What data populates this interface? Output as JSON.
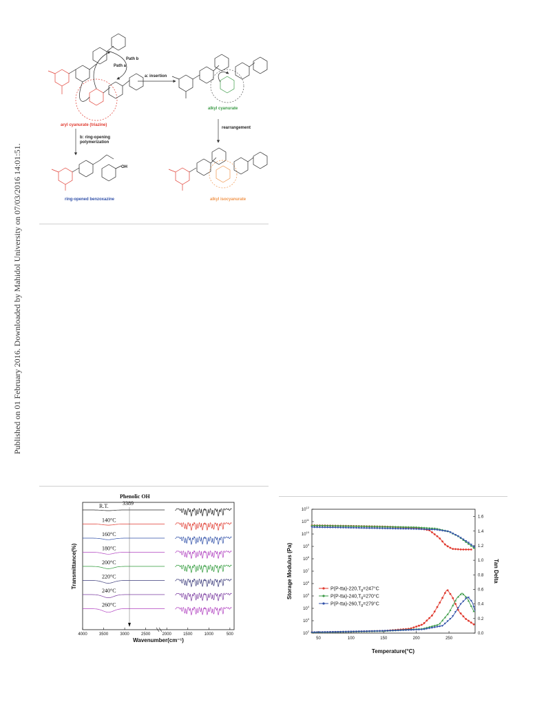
{
  "side_note": "Published on 01 February 2016. Downloaded by Mahidol University on 07/03/2016 14:01:51.",
  "scheme": {
    "path_a": "Path a",
    "path_b": "Path b",
    "arrow_insertion": "a: insertion",
    "arrow_rearrangement": "rearrangement",
    "arrow_rop_line1": "b: ring-opening",
    "arrow_rop_line2": "polymerization",
    "aryl_cyanurate": "aryl cyanurate (triazine)",
    "alkyl_cyanurate": "alkyl  cyanurate",
    "ring_opened": "ring-opened benzoxazine",
    "alkyl_isocyanurate": "alkyl isocyanurate"
  },
  "colors": {
    "red": "#e03a2f",
    "green": "#3a9a45",
    "blue": "#2f4fa8",
    "orange": "#f0944a",
    "black": "#222222",
    "purple": "#b040c0",
    "ftir_green": "#2f9a3a",
    "ftir_navy": "#3a3a7a",
    "ftir_violet": "#7a3aa0"
  },
  "chart_data": [
    {
      "type": "line",
      "title": "",
      "xlabel": "Wavenumber(cm⁻¹)",
      "ylabel": "Transmittance(%)",
      "xlim": [
        4000,
        400
      ],
      "x_ticks": [
        "4000",
        "3500",
        "3000",
        "2500",
        "2000",
        "1500",
        "1000",
        "500"
      ],
      "annotation_title": "Phenolic OH",
      "annotation_value": "3389",
      "series_labels": [
        "R.T.",
        "140°C",
        "160°C",
        "180°C",
        "200°C",
        "220°C",
        "240°C",
        "260°C"
      ],
      "series_colors": [
        "#222222",
        "#e03a2f",
        "#2f4fa8",
        "#b040c0",
        "#2f9a3a",
        "#3a3a7a",
        "#7a3aa0",
        "#b040c0"
      ]
    },
    {
      "type": "line",
      "title": "",
      "xlabel": "Temperature(°C)",
      "ylabel": "Storage Modulus (Pa)",
      "y2label": "Tan Delta",
      "xlim": [
        40,
        290
      ],
      "x_ticks": [
        50,
        100,
        150,
        200,
        250
      ],
      "y_log_exponents": [
        2,
        3,
        4,
        5,
        6,
        7,
        8,
        9,
        10,
        11,
        12
      ],
      "y2_ticks": [
        "0.0",
        "0.2",
        "0.4",
        "0.6",
        "0.8",
        "1.0",
        "1.2",
        "1.4",
        "1.6"
      ],
      "legend_position": "lower-left",
      "series": [
        {
          "name": "P(P-tta)-220,T",
          "tg_label": "g",
          "tg_value": "=247°C",
          "color": "#e03a2f",
          "modulus_log": [
            [
              40,
              10.7
            ],
            [
              100,
              10.65
            ],
            [
              150,
              10.6
            ],
            [
              200,
              10.5
            ],
            [
              220,
              10.3
            ],
            [
              235,
              9.7
            ],
            [
              245,
              9.1
            ],
            [
              255,
              8.8
            ],
            [
              270,
              8.75
            ],
            [
              285,
              8.75
            ]
          ],
          "tan_delta": [
            [
              40,
              0.01
            ],
            [
              100,
              0.02
            ],
            [
              150,
              0.03
            ],
            [
              190,
              0.06
            ],
            [
              210,
              0.12
            ],
            [
              225,
              0.25
            ],
            [
              238,
              0.45
            ],
            [
              247,
              0.6
            ],
            [
              255,
              0.5
            ],
            [
              265,
              0.3
            ],
            [
              275,
              0.2
            ],
            [
              288,
              0.12
            ]
          ]
        },
        {
          "name": "P(P-tta)-240,T",
          "tg_label": "g",
          "tg_value": "=270°C",
          "color": "#3a9a45",
          "modulus_log": [
            [
              40,
              10.7
            ],
            [
              100,
              10.65
            ],
            [
              150,
              10.6
            ],
            [
              200,
              10.55
            ],
            [
              230,
              10.45
            ],
            [
              250,
              10.2
            ],
            [
              265,
              9.8
            ],
            [
              280,
              9.2
            ],
            [
              290,
              8.8
            ]
          ],
          "tan_delta": [
            [
              40,
              0.01
            ],
            [
              100,
              0.02
            ],
            [
              150,
              0.03
            ],
            [
              210,
              0.06
            ],
            [
              235,
              0.12
            ],
            [
              250,
              0.28
            ],
            [
              262,
              0.48
            ],
            [
              270,
              0.55
            ],
            [
              278,
              0.48
            ],
            [
              288,
              0.3
            ]
          ]
        },
        {
          "name": "P(P-tta)-260,T",
          "tg_label": "g",
          "tg_value": "=279°C",
          "color": "#2f4fa8",
          "modulus_log": [
            [
              40,
              10.55
            ],
            [
              100,
              10.5
            ],
            [
              150,
              10.45
            ],
            [
              200,
              10.4
            ],
            [
              230,
              10.35
            ],
            [
              250,
              10.2
            ],
            [
              265,
              9.8
            ],
            [
              280,
              9.3
            ],
            [
              290,
              8.9
            ]
          ],
          "tan_delta": [
            [
              40,
              0.01
            ],
            [
              100,
              0.02
            ],
            [
              150,
              0.03
            ],
            [
              210,
              0.05
            ],
            [
              240,
              0.1
            ],
            [
              255,
              0.22
            ],
            [
              268,
              0.4
            ],
            [
              279,
              0.5
            ],
            [
              286,
              0.42
            ],
            [
              290,
              0.3
            ]
          ]
        }
      ]
    }
  ]
}
